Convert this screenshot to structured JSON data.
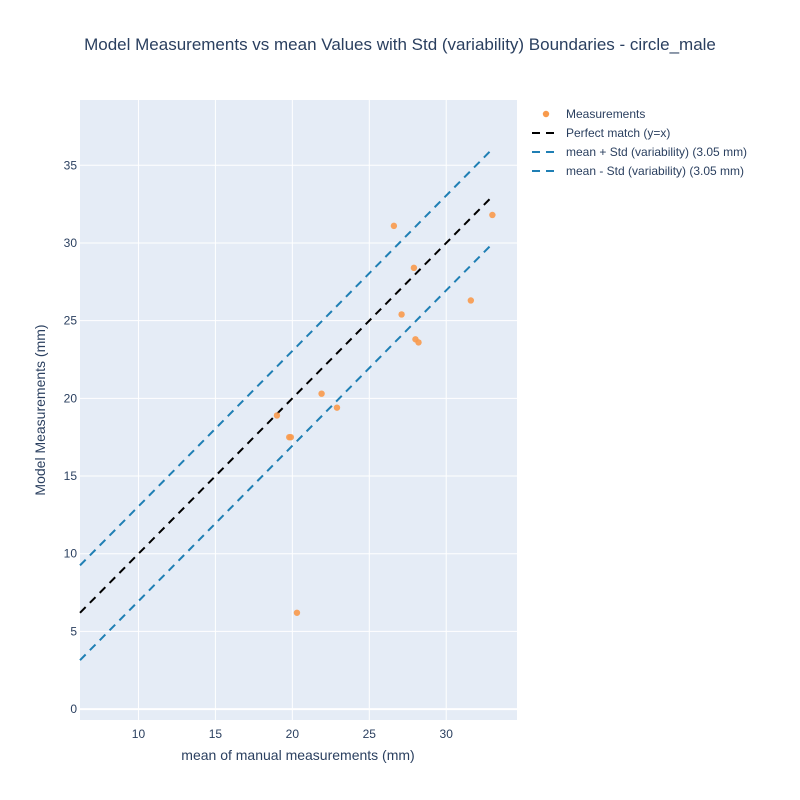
{
  "chart_data": {
    "type": "scatter",
    "title": "Model Measurements vs mean Values with Std (variability) Boundaries - circle_male",
    "xlabel": "mean of manual measurements (mm)",
    "ylabel": "Model Measurements  (mm)",
    "xlim": [
      6.2,
      34.6
    ],
    "ylim": [
      -0.7,
      39.2
    ],
    "xticks": [
      10,
      15,
      20,
      25,
      30
    ],
    "yticks": [
      0,
      5,
      10,
      15,
      20,
      25,
      30,
      35
    ],
    "grid": true,
    "legend_position": "top-right outside",
    "std_mm": 3.05,
    "series": [
      {
        "name": "Measurements",
        "kind": "markers",
        "color": "#f89a4c",
        "points": [
          {
            "x": 19.0,
            "y": 18.9
          },
          {
            "x": 19.8,
            "y": 17.5
          },
          {
            "x": 19.9,
            "y": 17.5
          },
          {
            "x": 20.3,
            "y": 6.2
          },
          {
            "x": 21.9,
            "y": 20.3
          },
          {
            "x": 22.9,
            "y": 19.4
          },
          {
            "x": 26.6,
            "y": 31.1
          },
          {
            "x": 27.1,
            "y": 25.4
          },
          {
            "x": 27.9,
            "y": 28.4
          },
          {
            "x": 28.0,
            "y": 23.8
          },
          {
            "x": 28.2,
            "y": 23.6
          },
          {
            "x": 31.6,
            "y": 26.3
          },
          {
            "x": 33.0,
            "y": 31.8
          }
        ]
      },
      {
        "name": "Perfect match (y=x)",
        "kind": "dashed-line",
        "color": "#000000",
        "points": [
          {
            "x": 6.2,
            "y": 6.2
          },
          {
            "x": 33.0,
            "y": 33.0
          }
        ]
      },
      {
        "name": "mean + Std (variability) (3.05 mm)",
        "kind": "dashed-line",
        "color": "#1f7fb4",
        "points": [
          {
            "x": 6.2,
            "y": 9.25
          },
          {
            "x": 33.0,
            "y": 36.05
          }
        ]
      },
      {
        "name": "mean - Std (variability) (3.05 mm)",
        "kind": "dashed-line",
        "color": "#1f7fb4",
        "points": [
          {
            "x": 6.2,
            "y": 3.15
          },
          {
            "x": 33.0,
            "y": 29.95
          }
        ]
      }
    ]
  }
}
